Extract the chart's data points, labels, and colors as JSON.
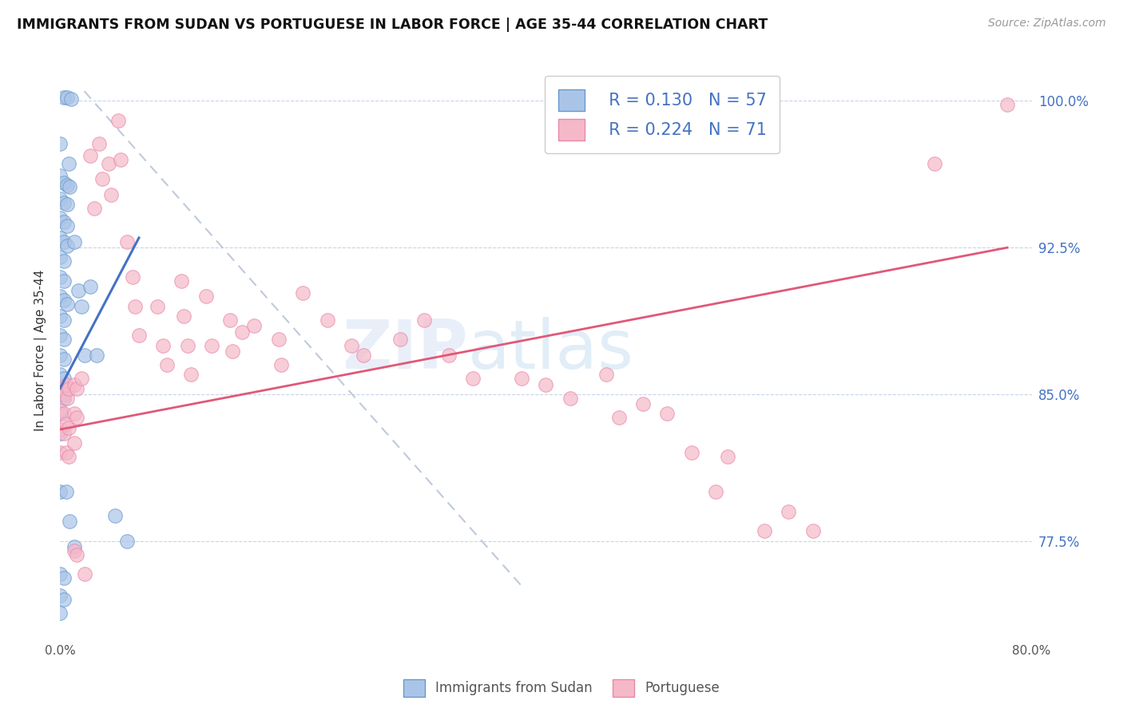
{
  "title": "IMMIGRANTS FROM SUDAN VS PORTUGUESE IN LABOR FORCE | AGE 35-44 CORRELATION CHART",
  "source_text": "Source: ZipAtlas.com",
  "ylabel": "In Labor Force | Age 35-44",
  "x_min": 0.0,
  "x_max": 0.8,
  "y_min": 0.725,
  "y_max": 1.02,
  "y_ticks": [
    0.775,
    0.85,
    0.925,
    1.0
  ],
  "y_tick_labels": [
    "77.5%",
    "85.0%",
    "92.5%",
    "100.0%"
  ],
  "x_ticks": [
    0.0,
    0.1,
    0.2,
    0.3,
    0.4,
    0.5,
    0.6,
    0.7,
    0.8
  ],
  "x_tick_labels": [
    "0.0%",
    "",
    "",
    "",
    "",
    "",
    "",
    "",
    "80.0%"
  ],
  "sudan_color": "#aac4e8",
  "sudan_edge_color": "#6699cc",
  "portuguese_color": "#f5b8c8",
  "portuguese_edge_color": "#e888aa",
  "blue_line_color": "#4472c4",
  "pink_line_color": "#e05878",
  "dashed_line_color": "#b8c4d8",
  "legend_color": "#4472c4",
  "R_sudan": 0.13,
  "N_sudan": 57,
  "R_portuguese": 0.224,
  "N_portuguese": 71,
  "watermark_zip": "ZIP",
  "watermark_atlas": "atlas",
  "blue_line": [
    [
      0.0,
      0.853
    ],
    [
      0.065,
      0.93
    ]
  ],
  "pink_line": [
    [
      0.0,
      0.832
    ],
    [
      0.78,
      0.925
    ]
  ],
  "dashed_line": [
    [
      0.02,
      1.005
    ],
    [
      0.38,
      0.752
    ]
  ],
  "sudan_scatter": [
    [
      0.003,
      1.002
    ],
    [
      0.006,
      1.002
    ],
    [
      0.009,
      1.001
    ],
    [
      0.0,
      0.978
    ],
    [
      0.0,
      0.962
    ],
    [
      0.003,
      0.958
    ],
    [
      0.006,
      0.957
    ],
    [
      0.0,
      0.95
    ],
    [
      0.003,
      0.948
    ],
    [
      0.006,
      0.947
    ],
    [
      0.0,
      0.94
    ],
    [
      0.003,
      0.938
    ],
    [
      0.006,
      0.936
    ],
    [
      0.0,
      0.93
    ],
    [
      0.003,
      0.928
    ],
    [
      0.006,
      0.926
    ],
    [
      0.0,
      0.92
    ],
    [
      0.003,
      0.918
    ],
    [
      0.0,
      0.91
    ],
    [
      0.003,
      0.908
    ],
    [
      0.0,
      0.9
    ],
    [
      0.003,
      0.898
    ],
    [
      0.006,
      0.896
    ],
    [
      0.0,
      0.89
    ],
    [
      0.003,
      0.888
    ],
    [
      0.0,
      0.88
    ],
    [
      0.003,
      0.878
    ],
    [
      0.0,
      0.87
    ],
    [
      0.003,
      0.868
    ],
    [
      0.0,
      0.86
    ],
    [
      0.003,
      0.858
    ],
    [
      0.0,
      0.85
    ],
    [
      0.003,
      0.848
    ],
    [
      0.0,
      0.84
    ],
    [
      0.0,
      0.83
    ],
    [
      0.0,
      0.8
    ],
    [
      0.007,
      0.968
    ],
    [
      0.008,
      0.956
    ],
    [
      0.012,
      0.928
    ],
    [
      0.015,
      0.903
    ],
    [
      0.018,
      0.895
    ],
    [
      0.02,
      0.87
    ],
    [
      0.025,
      0.905
    ],
    [
      0.03,
      0.87
    ],
    [
      0.045,
      0.788
    ],
    [
      0.055,
      0.775
    ],
    [
      0.005,
      0.8
    ],
    [
      0.008,
      0.785
    ],
    [
      0.012,
      0.772
    ],
    [
      0.0,
      0.758
    ],
    [
      0.003,
      0.756
    ],
    [
      0.0,
      0.747
    ],
    [
      0.003,
      0.745
    ],
    [
      0.0,
      0.738
    ]
  ],
  "portuguese_scatter": [
    [
      0.0,
      0.852
    ],
    [
      0.003,
      0.85
    ],
    [
      0.006,
      0.848
    ],
    [
      0.0,
      0.842
    ],
    [
      0.003,
      0.84
    ],
    [
      0.0,
      0.832
    ],
    [
      0.003,
      0.83
    ],
    [
      0.0,
      0.82
    ],
    [
      0.005,
      0.855
    ],
    [
      0.007,
      0.853
    ],
    [
      0.005,
      0.835
    ],
    [
      0.007,
      0.833
    ],
    [
      0.005,
      0.82
    ],
    [
      0.007,
      0.818
    ],
    [
      0.012,
      0.855
    ],
    [
      0.014,
      0.853
    ],
    [
      0.012,
      0.84
    ],
    [
      0.014,
      0.838
    ],
    [
      0.012,
      0.825
    ],
    [
      0.012,
      0.77
    ],
    [
      0.014,
      0.768
    ],
    [
      0.018,
      0.858
    ],
    [
      0.02,
      0.758
    ],
    [
      0.025,
      0.972
    ],
    [
      0.028,
      0.945
    ],
    [
      0.032,
      0.978
    ],
    [
      0.035,
      0.96
    ],
    [
      0.04,
      0.968
    ],
    [
      0.042,
      0.952
    ],
    [
      0.048,
      0.99
    ],
    [
      0.05,
      0.97
    ],
    [
      0.055,
      0.928
    ],
    [
      0.06,
      0.91
    ],
    [
      0.062,
      0.895
    ],
    [
      0.065,
      0.88
    ],
    [
      0.08,
      0.895
    ],
    [
      0.085,
      0.875
    ],
    [
      0.088,
      0.865
    ],
    [
      0.1,
      0.908
    ],
    [
      0.102,
      0.89
    ],
    [
      0.105,
      0.875
    ],
    [
      0.108,
      0.86
    ],
    [
      0.12,
      0.9
    ],
    [
      0.125,
      0.875
    ],
    [
      0.14,
      0.888
    ],
    [
      0.142,
      0.872
    ],
    [
      0.15,
      0.882
    ],
    [
      0.16,
      0.885
    ],
    [
      0.18,
      0.878
    ],
    [
      0.182,
      0.865
    ],
    [
      0.2,
      0.902
    ],
    [
      0.22,
      0.888
    ],
    [
      0.24,
      0.875
    ],
    [
      0.25,
      0.87
    ],
    [
      0.28,
      0.878
    ],
    [
      0.3,
      0.888
    ],
    [
      0.32,
      0.87
    ],
    [
      0.34,
      0.858
    ],
    [
      0.38,
      0.858
    ],
    [
      0.4,
      0.855
    ],
    [
      0.42,
      0.848
    ],
    [
      0.45,
      0.86
    ],
    [
      0.46,
      0.838
    ],
    [
      0.48,
      0.845
    ],
    [
      0.5,
      0.84
    ],
    [
      0.52,
      0.82
    ],
    [
      0.54,
      0.8
    ],
    [
      0.55,
      0.818
    ],
    [
      0.58,
      0.78
    ],
    [
      0.6,
      0.79
    ],
    [
      0.62,
      0.78
    ],
    [
      0.72,
      0.968
    ],
    [
      0.78,
      0.998
    ]
  ]
}
